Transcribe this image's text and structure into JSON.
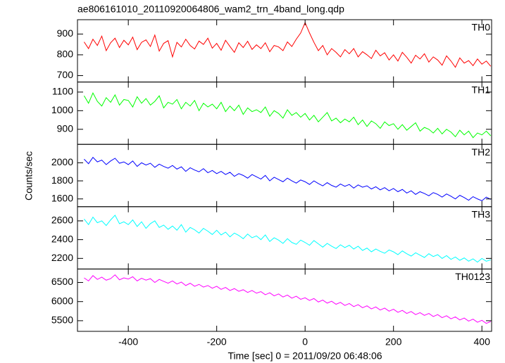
{
  "chart_data": {
    "type": "line",
    "title": "ae806161010_20110920064806_wam2_trn_4band_long.qdp",
    "xlabel": "Time [sec] 0 = 2011/09/20 06:48:06",
    "ylabel": "Counts/sec",
    "xlim": [
      -515,
      422
    ],
    "xticks": [
      -400,
      -200,
      0,
      200,
      400
    ],
    "x": [
      -500,
      -490,
      -480,
      -470,
      -460,
      -450,
      -440,
      -430,
      -420,
      -410,
      -400,
      -390,
      -380,
      -370,
      -360,
      -350,
      -340,
      -330,
      -320,
      -310,
      -300,
      -290,
      -280,
      -270,
      -260,
      -250,
      -240,
      -230,
      -220,
      -210,
      -200,
      -190,
      -180,
      -170,
      -160,
      -150,
      -140,
      -130,
      -120,
      -110,
      -100,
      -90,
      -80,
      -70,
      -60,
      -50,
      -40,
      -30,
      -20,
      -10,
      0,
      10,
      20,
      30,
      40,
      50,
      60,
      70,
      80,
      90,
      100,
      110,
      120,
      130,
      140,
      150,
      160,
      170,
      180,
      190,
      200,
      210,
      220,
      230,
      240,
      250,
      260,
      270,
      280,
      290,
      300,
      310,
      320,
      330,
      340,
      350,
      360,
      370,
      380,
      390,
      400,
      410,
      420
    ],
    "series": [
      {
        "name": "TH0",
        "color": "#ff0000",
        "ylim": [
          669,
          969
        ],
        "yticks": [
          700,
          800,
          900
        ],
        "values": [
          862,
          830,
          875,
          845,
          890,
          820,
          858,
          880,
          835,
          870,
          848,
          885,
          825,
          860,
          872,
          840,
          895,
          818,
          855,
          868,
          790,
          860,
          838,
          875,
          845,
          828,
          866,
          850,
          880,
          832,
          855,
          822,
          870,
          840,
          812,
          858,
          835,
          865,
          826,
          848,
          830,
          858,
          815,
          845,
          838,
          820,
          862,
          840,
          875,
          905,
          955,
          905,
          860,
          820,
          845,
          800,
          830,
          812,
          790,
          825,
          805,
          830,
          790,
          815,
          800,
          782,
          822,
          795,
          810,
          775,
          800,
          770,
          812,
          788,
          760,
          798,
          780,
          805,
          765,
          790,
          775,
          750,
          795,
          770,
          740,
          785,
          760,
          772,
          748,
          780,
          755,
          770,
          745
        ]
      },
      {
        "name": "TH1",
        "color": "#00ff00",
        "ylim": [
          819,
          1154
        ],
        "yticks": [
          900,
          1000,
          1100
        ],
        "values": [
          1080,
          1040,
          1095,
          1050,
          1025,
          1070,
          1045,
          1085,
          1030,
          1060,
          1055,
          1020,
          1075,
          1040,
          1065,
          1030,
          1050,
          1080,
          1015,
          1045,
          1035,
          1060,
          1010,
          1045,
          1025,
          1055,
          1000,
          1040,
          1020,
          1035,
          1010,
          1045,
          995,
          1025,
          1000,
          1030,
          980,
          1015,
          995,
          1005,
          990,
          1020,
          970,
          1000,
          985,
          960,
          1005,
          975,
          990,
          965,
          985,
          950,
          975,
          940,
          965,
          990,
          945,
          960,
          935,
          955,
          940,
          965,
          925,
          950,
          915,
          945,
          930,
          905,
          940,
          920,
          930,
          900,
          925,
          895,
          915,
          935,
          890,
          910,
          900,
          880,
          905,
          875,
          900,
          885,
          860,
          895,
          870,
          890,
          855,
          880,
          870,
          890,
          865
        ]
      },
      {
        "name": "TH2",
        "color": "#0000ff",
        "ylim": [
          1514,
          2204
        ],
        "yticks": [
          1600,
          1800,
          2000
        ],
        "values": [
          2040,
          1990,
          2060,
          2010,
          2030,
          1980,
          2020,
          2050,
          1995,
          2010,
          1980,
          2020,
          1960,
          2000,
          1975,
          1995,
          1950,
          1985,
          1960,
          1940,
          1970,
          1930,
          1955,
          1905,
          1945,
          1920,
          1900,
          1935,
          1890,
          1915,
          1880,
          1905,
          1870,
          1895,
          1850,
          1880,
          1860,
          1830,
          1870,
          1845,
          1820,
          1860,
          1800,
          1840,
          1815,
          1790,
          1830,
          1800,
          1775,
          1810,
          1790,
          1760,
          1800,
          1770,
          1745,
          1780,
          1750,
          1730,
          1765,
          1740,
          1760,
          1720,
          1755,
          1730,
          1745,
          1710,
          1735,
          1700,
          1725,
          1690,
          1715,
          1680,
          1705,
          1665,
          1690,
          1650,
          1680,
          1660,
          1635,
          1670,
          1650,
          1620,
          1655,
          1630,
          1600,
          1640,
          1615,
          1585,
          1625,
          1600,
          1580,
          1620,
          1595
        ]
      },
      {
        "name": "TH3",
        "color": "#00ffff",
        "ylim": [
          2087,
          2751
        ],
        "yticks": [
          2200,
          2400,
          2600
        ],
        "values": [
          2620,
          2560,
          2640,
          2580,
          2600,
          2550,
          2610,
          2660,
          2570,
          2590,
          2560,
          2610,
          2540,
          2590,
          2520,
          2570,
          2600,
          2530,
          2555,
          2510,
          2545,
          2500,
          2560,
          2480,
          2530,
          2505,
          2470,
          2520,
          2490,
          2455,
          2500,
          2450,
          2480,
          2430,
          2470,
          2445,
          2410,
          2460,
          2420,
          2440,
          2400,
          2450,
          2380,
          2420,
          2395,
          2360,
          2410,
          2370,
          2350,
          2395,
          2370,
          2340,
          2390,
          2355,
          2320,
          2360,
          2330,
          2305,
          2345,
          2315,
          2340,
          2300,
          2330,
          2285,
          2310,
          2270,
          2300,
          2275,
          2255,
          2290,
          2270,
          2240,
          2280,
          2250,
          2225,
          2260,
          2235,
          2210,
          2250,
          2220,
          2240,
          2200,
          2230,
          2190,
          2215,
          2180,
          2205,
          2170,
          2195,
          2160,
          2200,
          2170,
          2185
        ]
      },
      {
        "name": "TH0123",
        "color": "#ff00ff",
        "ylim": [
          5222,
          6852
        ],
        "yticks": [
          5500,
          6000,
          6500
        ],
        "values": [
          6620,
          6540,
          6680,
          6580,
          6640,
          6560,
          6600,
          6700,
          6570,
          6620,
          6590,
          6650,
          6540,
          6610,
          6560,
          6600,
          6500,
          6580,
          6530,
          6480,
          6540,
          6460,
          6510,
          6420,
          6480,
          6400,
          6450,
          6380,
          6420,
          6350,
          6400,
          6320,
          6370,
          6290,
          6340,
          6270,
          6310,
          6240,
          6290,
          6220,
          6260,
          6180,
          6230,
          6150,
          6200,
          6120,
          6170,
          6090,
          6140,
          6060,
          6100,
          6030,
          6080,
          5990,
          6040,
          5960,
          6010,
          5930,
          5980,
          5900,
          5950,
          5870,
          5920,
          5840,
          5890,
          5810,
          5860,
          5780,
          5830,
          5750,
          5800,
          5720,
          5770,
          5690,
          5740,
          5660,
          5710,
          5640,
          5690,
          5610,
          5660,
          5580,
          5630,
          5550,
          5600,
          5520,
          5570,
          5490,
          5540,
          5460,
          5510,
          5430,
          5480
        ]
      }
    ]
  }
}
